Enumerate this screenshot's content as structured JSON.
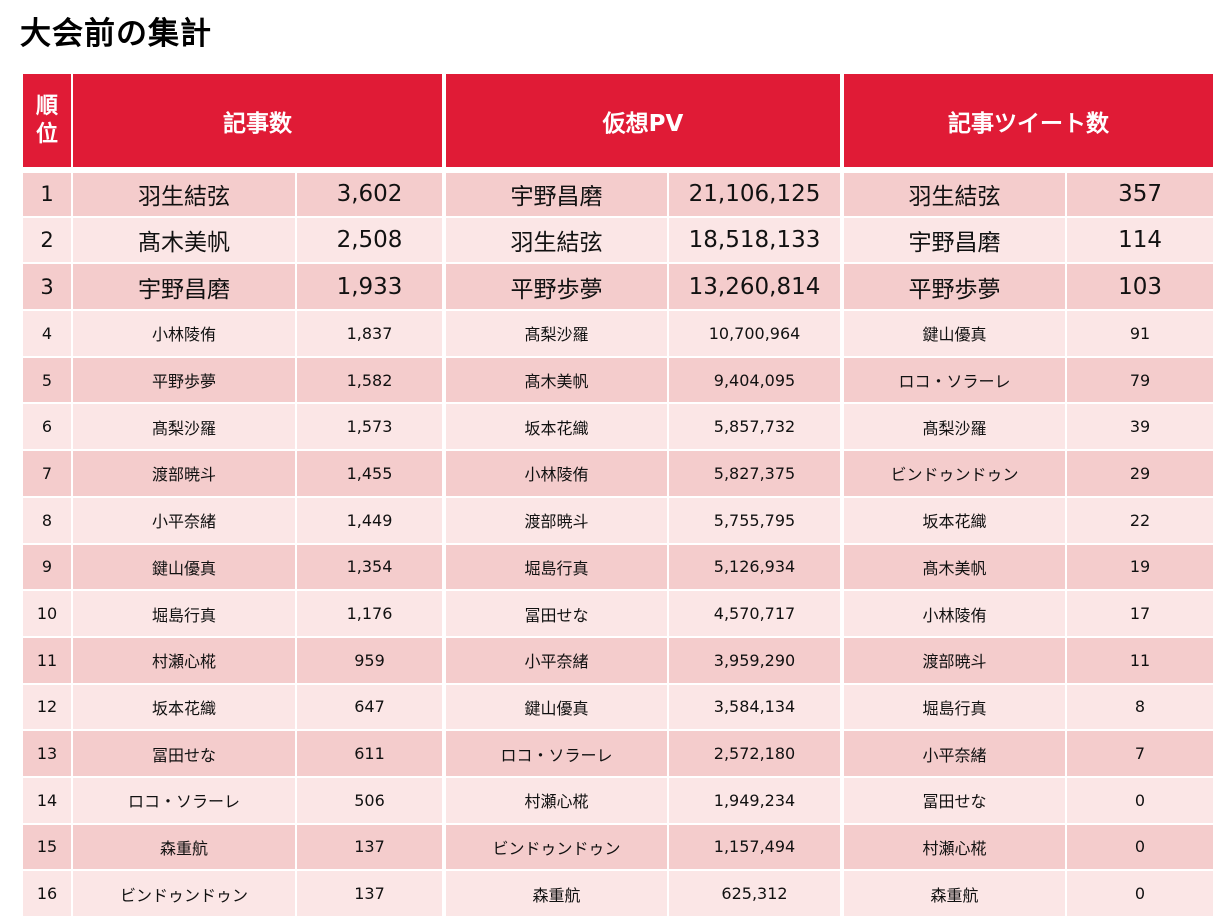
{
  "title": "大会前の集計",
  "headers": {
    "rank": "順位",
    "articles": "記事数",
    "pv": "仮想PV",
    "tweets": "記事ツイート数"
  },
  "rows": [
    {
      "rank": "1",
      "articles_name": "羽生結弦",
      "articles_value": "3,602",
      "pv_name": "宇野昌磨",
      "pv_value": "21,106,125",
      "tweets_name": "羽生結弦",
      "tweets_value": "357"
    },
    {
      "rank": "2",
      "articles_name": "髙木美帆",
      "articles_value": "2,508",
      "pv_name": "羽生結弦",
      "pv_value": "18,518,133",
      "tweets_name": "宇野昌磨",
      "tweets_value": "114"
    },
    {
      "rank": "3",
      "articles_name": "宇野昌磨",
      "articles_value": "1,933",
      "pv_name": "平野歩夢",
      "pv_value": "13,260,814",
      "tweets_name": "平野歩夢",
      "tweets_value": "103"
    },
    {
      "rank": "4",
      "articles_name": "小林陵侑",
      "articles_value": "1,837",
      "pv_name": "髙梨沙羅",
      "pv_value": "10,700,964",
      "tweets_name": "鍵山優真",
      "tweets_value": "91"
    },
    {
      "rank": "5",
      "articles_name": "平野歩夢",
      "articles_value": "1,582",
      "pv_name": "髙木美帆",
      "pv_value": "9,404,095",
      "tweets_name": "ロコ・ソラーレ",
      "tweets_value": "79"
    },
    {
      "rank": "6",
      "articles_name": "髙梨沙羅",
      "articles_value": "1,573",
      "pv_name": "坂本花織",
      "pv_value": "5,857,732",
      "tweets_name": "髙梨沙羅",
      "tweets_value": "39"
    },
    {
      "rank": "7",
      "articles_name": "渡部暁斗",
      "articles_value": "1,455",
      "pv_name": "小林陵侑",
      "pv_value": "5,827,375",
      "tweets_name": "ビンドゥンドゥン",
      "tweets_value": "29"
    },
    {
      "rank": "8",
      "articles_name": "小平奈緒",
      "articles_value": "1,449",
      "pv_name": "渡部暁斗",
      "pv_value": "5,755,795",
      "tweets_name": "坂本花織",
      "tweets_value": "22"
    },
    {
      "rank": "9",
      "articles_name": "鍵山優真",
      "articles_value": "1,354",
      "pv_name": "堀島行真",
      "pv_value": "5,126,934",
      "tweets_name": "髙木美帆",
      "tweets_value": "19"
    },
    {
      "rank": "10",
      "articles_name": "堀島行真",
      "articles_value": "1,176",
      "pv_name": "冨田せな",
      "pv_value": "4,570,717",
      "tweets_name": "小林陵侑",
      "tweets_value": "17"
    },
    {
      "rank": "11",
      "articles_name": "村瀬心椛",
      "articles_value": "959",
      "pv_name": "小平奈緒",
      "pv_value": "3,959,290",
      "tweets_name": "渡部暁斗",
      "tweets_value": "11"
    },
    {
      "rank": "12",
      "articles_name": "坂本花織",
      "articles_value": "647",
      "pv_name": "鍵山優真",
      "pv_value": "3,584,134",
      "tweets_name": "堀島行真",
      "tweets_value": "8"
    },
    {
      "rank": "13",
      "articles_name": "冨田せな",
      "articles_value": "611",
      "pv_name": "ロコ・ソラーレ",
      "pv_value": "2,572,180",
      "tweets_name": "小平奈緒",
      "tweets_value": "7"
    },
    {
      "rank": "14",
      "articles_name": "ロコ・ソラーレ",
      "articles_value": "506",
      "pv_name": "村瀬心椛",
      "pv_value": "1,949,234",
      "tweets_name": "冨田せな",
      "tweets_value": "0"
    },
    {
      "rank": "15",
      "articles_name": "森重航",
      "articles_value": "137",
      "pv_name": "ビンドゥンドゥン",
      "pv_value": "1,157,494",
      "tweets_name": "村瀬心椛",
      "tweets_value": "0"
    },
    {
      "rank": "16",
      "articles_name": "ビンドゥンドゥン",
      "articles_value": "137",
      "pv_name": "森重航",
      "pv_value": "625,312",
      "tweets_name": "森重航",
      "tweets_value": "0"
    }
  ],
  "colors": {
    "header": "#e01b36",
    "row_dark": "#f4cccc",
    "row_light": "#fbe6e6"
  }
}
